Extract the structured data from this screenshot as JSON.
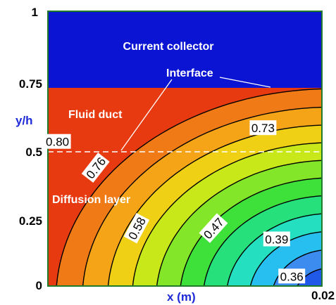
{
  "chart_data": {
    "type": "contour",
    "x_axis": {
      "label": "x (m)",
      "range": [
        0,
        0.02
      ],
      "tick_labels": [
        "0.02"
      ]
    },
    "y_axis": {
      "label": "y/h",
      "range": [
        0,
        1
      ],
      "tick_labels": [
        "0",
        "0.25",
        "0.5",
        "0.75",
        "1"
      ]
    },
    "regions": [
      {
        "name": "Current collector",
        "y_range": [
          0.74,
          1.0
        ],
        "color": "#0a14d2"
      },
      {
        "name": "Fluid duct",
        "y_range": [
          0.5,
          0.74
        ]
      },
      {
        "name": "Diffusion layer",
        "y_range": [
          0,
          0.5
        ]
      }
    ],
    "annotations": [
      "Interface"
    ],
    "contour_labels": [
      {
        "text": "0.80",
        "x": 0.0007,
        "y": 0.525
      },
      {
        "text": "0.76",
        "x": 0.0035,
        "y": 0.43
      },
      {
        "text": "0.73",
        "x": 0.0157,
        "y": 0.575
      },
      {
        "text": "0.58",
        "x": 0.0065,
        "y": 0.21
      },
      {
        "text": "0.47",
        "x": 0.0121,
        "y": 0.21
      },
      {
        "text": "0.39",
        "x": 0.0167,
        "y": 0.17
      },
      {
        "text": "0.36",
        "x": 0.0178,
        "y": 0.035
      }
    ],
    "grid": false,
    "colormap": [
      "#e83a10",
      "#f07a16",
      "#f5a418",
      "#f0d014",
      "#c8e81a",
      "#84e628",
      "#3ee03a",
      "#26e07c",
      "#24e0c0",
      "#26bff0",
      "#3c8cf0",
      "#2058e8",
      "#0a14d2"
    ]
  }
}
